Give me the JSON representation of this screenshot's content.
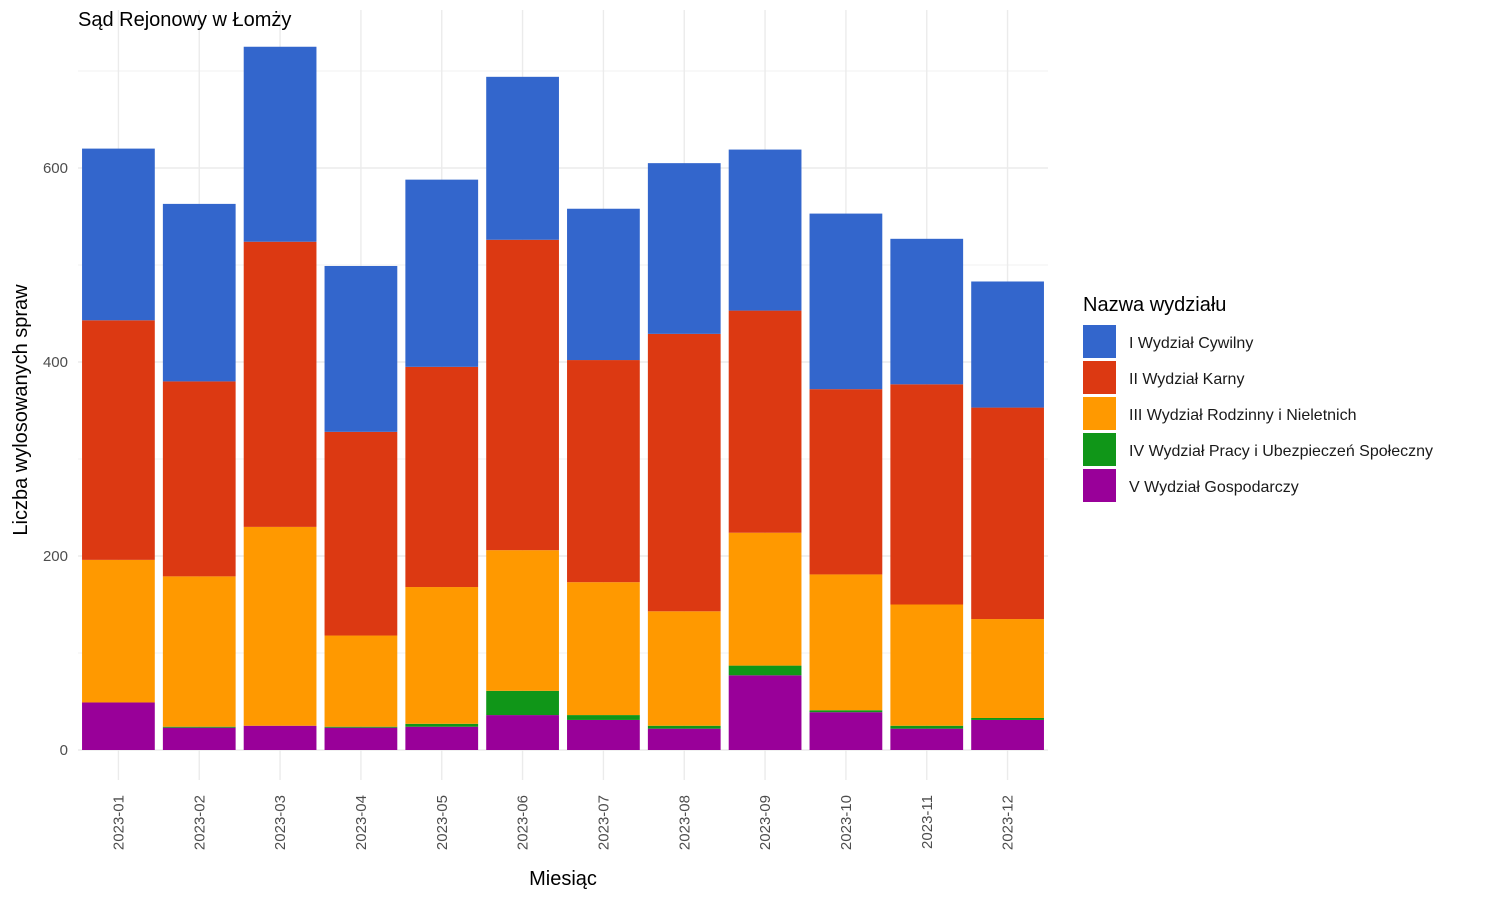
{
  "chart_data": {
    "type": "bar",
    "stacked": true,
    "title": "Sąd Rejonowy w Łomży",
    "xlabel": "Miesiąc",
    "ylabel": "Liczba wylosowanych spraw",
    "ylim": [
      0,
      730
    ],
    "yticks": [
      0,
      200,
      400,
      600
    ],
    "grid": true,
    "legend_title": "Nazwa wydziału",
    "legend_position": "right",
    "categories": [
      "2023-01",
      "2023-02",
      "2023-03",
      "2023-04",
      "2023-05",
      "2023-06",
      "2023-07",
      "2023-08",
      "2023-09",
      "2023-10",
      "2023-11",
      "2023-12"
    ],
    "series": [
      {
        "name": "V Wydział Gospodarczy",
        "color": "#990099",
        "values": [
          49,
          23,
          25,
          23,
          24,
          36,
          31,
          22,
          77,
          39,
          22,
          31
        ]
      },
      {
        "name": "IV Wydział Pracy i Ubezpieczeń Społeczny",
        "color": "#109618",
        "values": [
          0,
          1,
          0,
          1,
          3,
          25,
          5,
          3,
          10,
          2,
          3,
          2
        ]
      },
      {
        "name": "III Wydział Rodzinny i Nieletnich",
        "color": "#FF9900",
        "values": [
          147,
          155,
          205,
          94,
          141,
          145,
          137,
          118,
          137,
          140,
          125,
          102
        ]
      },
      {
        "name": "II Wydział Karny",
        "color": "#DC3912",
        "values": [
          247,
          201,
          294,
          210,
          227,
          320,
          229,
          286,
          229,
          191,
          227,
          218
        ]
      },
      {
        "name": "I Wydział Cywilny",
        "color": "#3366CC",
        "values": [
          177,
          183,
          201,
          171,
          193,
          168,
          156,
          176,
          166,
          181,
          150,
          130
        ]
      }
    ],
    "legend_order": [
      "I Wydział Cywilny",
      "II Wydział Karny",
      "III Wydział Rodzinny i Nieletnich",
      "IV Wydział Pracy i Ubezpieczeń Społeczny",
      "V Wydział Gospodarczy"
    ]
  }
}
